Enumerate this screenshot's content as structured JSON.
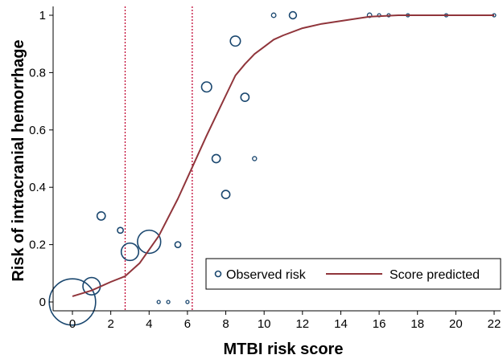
{
  "chart_data": {
    "type": "scatter",
    "xlabel": "MTBI risk score",
    "ylabel": "Risk of intracranial hemorrhage",
    "xlim": [
      0,
      22
    ],
    "ylim": [
      0,
      1
    ],
    "x_ticks": [
      "0",
      "2",
      "4",
      "6",
      "8",
      "10",
      "12",
      "14",
      "16",
      "18",
      "20",
      "22"
    ],
    "y_ticks": [
      "0",
      "0.2",
      "0.4",
      "0.6",
      "0.8",
      "1"
    ],
    "grid": false,
    "legend_position": "bottom-right",
    "reference_lines_x": [
      2.75,
      6.25
    ],
    "series": [
      {
        "name": "Observed risk",
        "kind": "scatter",
        "marker_color": "#1a476f",
        "points": [
          {
            "x": 0,
            "y": 0.0,
            "n": 64
          },
          {
            "x": 1,
            "y": 0.055,
            "n": 9
          },
          {
            "x": 1.5,
            "y": 0.3,
            "n": 2
          },
          {
            "x": 2.5,
            "y": 0.25,
            "n": 1
          },
          {
            "x": 3,
            "y": 0.175,
            "n": 9
          },
          {
            "x": 4,
            "y": 0.21,
            "n": 16
          },
          {
            "x": 4.5,
            "y": 0.0,
            "n": 0.3
          },
          {
            "x": 5,
            "y": 0.0,
            "n": 0.3
          },
          {
            "x": 5.5,
            "y": 0.2,
            "n": 1
          },
          {
            "x": 6,
            "y": 0.0,
            "n": 0.3
          },
          {
            "x": 7,
            "y": 0.75,
            "n": 3
          },
          {
            "x": 7.5,
            "y": 0.5,
            "n": 2
          },
          {
            "x": 8,
            "y": 0.375,
            "n": 2
          },
          {
            "x": 8.5,
            "y": 0.91,
            "n": 3
          },
          {
            "x": 9,
            "y": 0.714,
            "n": 2
          },
          {
            "x": 9.5,
            "y": 0.5,
            "n": 0.5
          },
          {
            "x": 10.5,
            "y": 1.0,
            "n": 0.6
          },
          {
            "x": 11.5,
            "y": 1.0,
            "n": 1.5
          },
          {
            "x": 15.5,
            "y": 1.0,
            "n": 0.6
          },
          {
            "x": 16,
            "y": 1.0,
            "n": 0.3
          },
          {
            "x": 16.5,
            "y": 1.0,
            "n": 0.3
          },
          {
            "x": 17.5,
            "y": 1.0,
            "n": 0.3
          },
          {
            "x": 19.5,
            "y": 1.0,
            "n": 0.3
          },
          {
            "x": 22,
            "y": 1.0,
            "n": 0.3
          }
        ]
      },
      {
        "name": "Score predicted",
        "kind": "line",
        "color": "#90353b",
        "x": [
          0,
          1,
          2,
          2.75,
          3.5,
          4.5,
          5.5,
          6.25,
          7,
          7.5,
          8,
          8.5,
          9,
          9.5,
          10,
          10.5,
          11,
          12,
          13,
          14,
          15.5,
          17,
          22
        ],
        "y": [
          0.02,
          0.04,
          0.07,
          0.09,
          0.135,
          0.23,
          0.36,
          0.47,
          0.58,
          0.65,
          0.72,
          0.79,
          0.83,
          0.865,
          0.89,
          0.915,
          0.93,
          0.955,
          0.97,
          0.98,
          0.995,
          1.0,
          1.0
        ]
      }
    ]
  },
  "colors": {
    "observed": "#1a476f",
    "predicted": "#90353b",
    "reference": "#c10534"
  }
}
